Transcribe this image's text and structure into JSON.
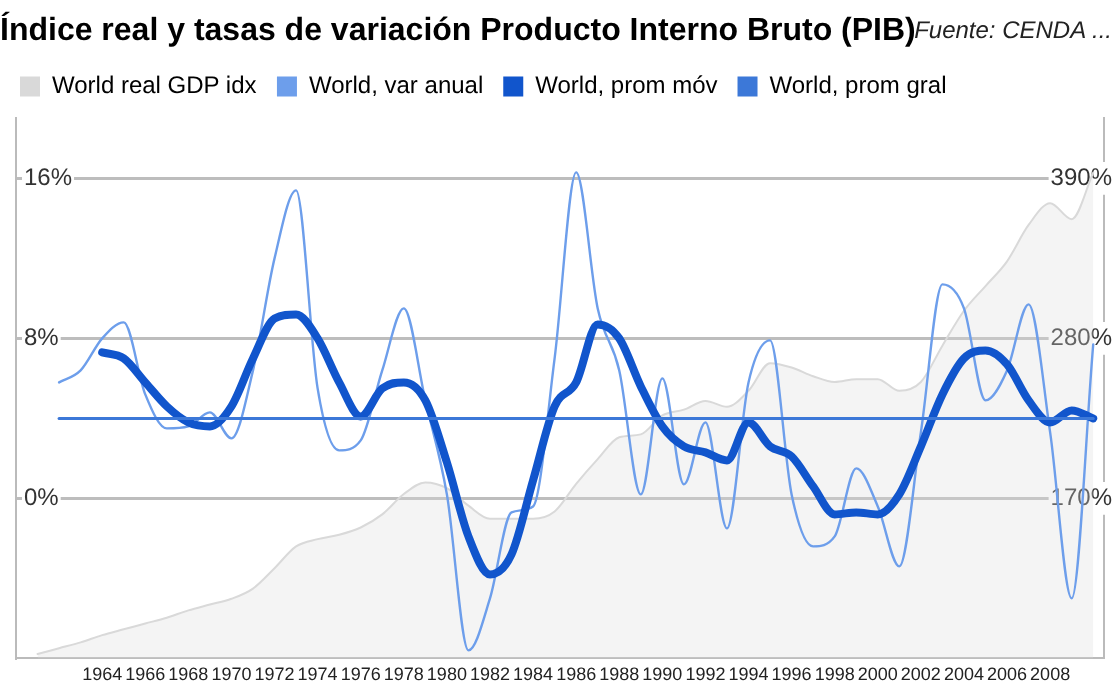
{
  "chart_data": {
    "type": "line",
    "title": "Índice real y tasas de variación Producto Interno Bruto (PIB)",
    "annotations": [
      "Fuente: CENDA ..."
    ],
    "xlim": [
      1960,
      2010.5
    ],
    "xticks": [
      1964,
      1966,
      1968,
      1970,
      1972,
      1974,
      1976,
      1978,
      1980,
      1982,
      1984,
      1986,
      1988,
      1990,
      1992,
      1994,
      1996,
      1998,
      2000,
      2002,
      2004,
      2006,
      2008
    ],
    "ylim": [
      -8,
      19
    ],
    "yticks": [
      {
        "value": 0,
        "label": "0%"
      },
      {
        "value": 8,
        "label": "8%"
      },
      {
        "value": 16,
        "label": "16%"
      }
    ],
    "y2lim": [
      60,
      431.25
    ],
    "y2ticks": [
      {
        "value": 170,
        "label": "170%"
      },
      {
        "value": 280,
        "label": "280%"
      },
      {
        "value": 390,
        "label": "390%"
      }
    ],
    "grid": "y",
    "legend": "top left",
    "series": [
      {
        "name": "World real GDP idx",
        "type": "area",
        "axis": "y2",
        "color": "#d9d9d9",
        "x": [
          1961,
          1962,
          1963,
          1964,
          1965,
          1966,
          1967,
          1968,
          1969,
          1970,
          1971,
          1972,
          1973,
          1974,
          1975,
          1976,
          1977,
          1978,
          1979,
          1980,
          1981,
          1982,
          1983,
          1984,
          1985,
          1986,
          1987,
          1988,
          1989,
          1990,
          1991,
          1992,
          1993,
          1994,
          1995,
          1996,
          1997,
          1998,
          1999,
          2000,
          2001,
          2002,
          2003,
          2004,
          2005,
          2006,
          2007,
          2008,
          2009,
          2010
        ],
        "values": [
          63,
          67,
          71,
          76,
          80,
          84,
          88,
          93,
          97,
          101,
          108,
          122,
          137,
          142,
          145,
          150,
          159,
          173,
          181,
          177,
          165,
          156,
          156,
          156,
          161,
          180,
          197,
          212,
          214,
          227,
          231,
          237,
          233,
          244,
          263,
          260,
          254,
          250,
          252,
          252,
          244,
          250,
          275,
          299,
          316,
          333,
          358,
          373,
          362,
          394
        ]
      },
      {
        "name": "World, var anual",
        "color": "#6d9eeb",
        "x": [
          1962,
          1963,
          1964,
          1965,
          1966,
          1967,
          1968,
          1969,
          1970,
          1971,
          1972,
          1973,
          1974,
          1975,
          1976,
          1977,
          1978,
          1979,
          1980,
          1981,
          1982,
          1983,
          1984,
          1985,
          1986,
          1987,
          1988,
          1989,
          1990,
          1991,
          1992,
          1993,
          1994,
          1995,
          1996,
          1997,
          1998,
          1999,
          2000,
          2001,
          2002,
          2003,
          2004,
          2005,
          2006,
          2007,
          2008,
          2009,
          2010
        ],
        "values": [
          5.8,
          6.4,
          8.0,
          8.8,
          5.2,
          3.5,
          3.6,
          4.3,
          3.0,
          6.4,
          12.0,
          15.4,
          5.5,
          2.4,
          2.9,
          6.4,
          9.5,
          4.9,
          0.2,
          -7.6,
          -5.0,
          -0.7,
          -0.4,
          7.0,
          16.3,
          9.5,
          6.4,
          0.2,
          6.0,
          0.7,
          3.8,
          -1.5,
          5.8,
          7.9,
          0.2,
          -2.4,
          -1.9,
          1.5,
          -0.4,
          -3.4,
          3.3,
          10.7,
          9.5,
          4.9,
          6.4,
          9.7,
          3.3,
          -5.0,
          7.7
        ]
      },
      {
        "name": "World, prom móv",
        "color": "#1155cc",
        "x": [
          1964,
          1965,
          1966,
          1967,
          1968,
          1969,
          1970,
          1971,
          1972,
          1973,
          1974,
          1975,
          1976,
          1977,
          1978,
          1979,
          1980,
          1981,
          1982,
          1983,
          1984,
          1985,
          1986,
          1987,
          1988,
          1989,
          1990,
          1991,
          1992,
          1993,
          1994,
          1995,
          1996,
          1997,
          1998,
          1999,
          2000,
          2001,
          2002,
          2003,
          2004,
          2005,
          2006,
          2007,
          2008,
          2009,
          2010
        ],
        "values": [
          7.3,
          7.0,
          5.8,
          4.6,
          3.8,
          3.6,
          4.6,
          7.0,
          9.0,
          9.2,
          8.0,
          5.8,
          4.1,
          5.5,
          5.8,
          4.9,
          1.8,
          -1.9,
          -3.8,
          -2.8,
          0.9,
          4.6,
          5.8,
          8.7,
          8.0,
          5.6,
          3.6,
          2.6,
          2.3,
          1.9,
          3.8,
          2.6,
          2.1,
          0.6,
          -0.8,
          -0.7,
          -0.8,
          0.2,
          2.6,
          5.2,
          7.0,
          7.4,
          6.7,
          4.9,
          3.8,
          4.4,
          4.0
        ]
      },
      {
        "name": "World, prom gral",
        "color": "#3c78d8",
        "x": [
          1962,
          2010
        ],
        "values": [
          4.0,
          4.0
        ]
      }
    ]
  }
}
